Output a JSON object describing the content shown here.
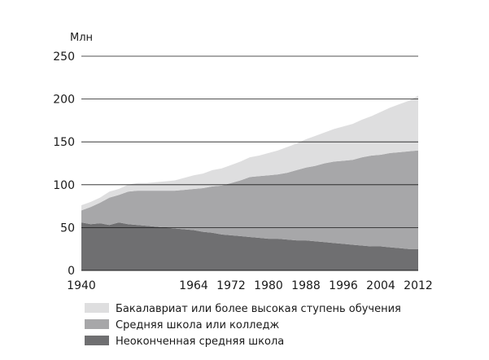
{
  "chart_data": {
    "type": "area",
    "stacked": true,
    "unit_label": "Млн",
    "x": [
      1940,
      1942,
      1944,
      1946,
      1948,
      1950,
      1952,
      1954,
      1956,
      1958,
      1960,
      1962,
      1964,
      1966,
      1968,
      1970,
      1972,
      1974,
      1976,
      1978,
      1980,
      1982,
      1984,
      1986,
      1988,
      1990,
      1992,
      1994,
      1996,
      1998,
      2000,
      2002,
      2004,
      2006,
      2008,
      2010,
      2012
    ],
    "xticks": [
      "1940",
      "1964",
      "1972",
      "1980",
      "1988",
      "1996",
      "2004",
      "2012"
    ],
    "xtick_values": [
      1940,
      1964,
      1972,
      1980,
      1988,
      1996,
      2004,
      2012
    ],
    "yticks": [
      0,
      50,
      100,
      150,
      200,
      250
    ],
    "ylim": [
      0,
      250
    ],
    "xlim": [
      1940,
      2012
    ],
    "grid": true,
    "legend_position": "bottom",
    "series": [
      {
        "name": "Неоконченная средняя школа",
        "color": "#6f6f71",
        "values": [
          56,
          54,
          55,
          53,
          56,
          54,
          53,
          52,
          51,
          50,
          49,
          48,
          47,
          45,
          44,
          42,
          41,
          40,
          39,
          38,
          37,
          37,
          36,
          35,
          35,
          34,
          33,
          32,
          31,
          30,
          29,
          28,
          28,
          27,
          26,
          25,
          25
        ]
      },
      {
        "name": "Средняя школа или колледж",
        "color": "#a7a7a9",
        "values": [
          14,
          20,
          24,
          32,
          32,
          38,
          40,
          41,
          42,
          43,
          44,
          46,
          48,
          51,
          54,
          57,
          61,
          65,
          70,
          72,
          74,
          75,
          78,
          82,
          85,
          88,
          92,
          95,
          97,
          99,
          103,
          106,
          107,
          110,
          112,
          114,
          115
        ]
      },
      {
        "name": "Бакалавриат или более высокая ступень обучения",
        "color": "#dededf",
        "values": [
          6,
          6,
          6,
          7,
          7,
          8,
          9,
          9,
          10,
          11,
          12,
          14,
          16,
          17,
          19,
          20,
          21,
          22,
          23,
          24,
          26,
          28,
          30,
          31,
          33,
          35,
          36,
          38,
          40,
          42,
          44,
          46,
          50,
          53,
          56,
          59,
          64
        ]
      }
    ]
  }
}
